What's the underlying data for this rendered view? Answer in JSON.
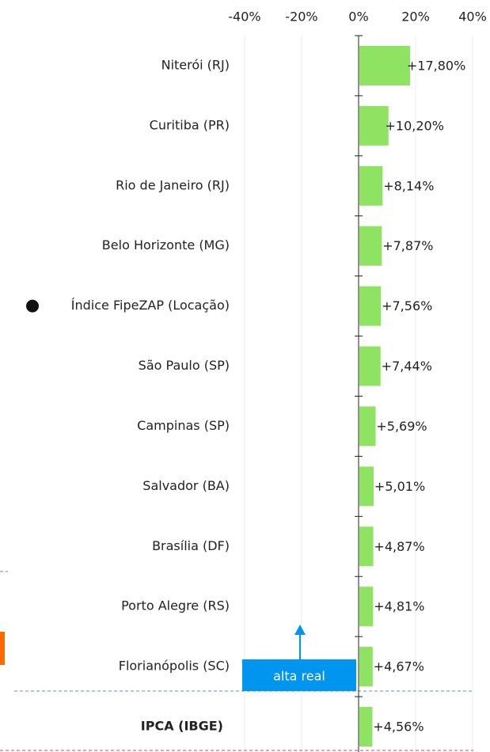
{
  "chart_data": {
    "type": "bar",
    "orientation": "horizontal",
    "categories": [
      "Niterói (RJ)",
      "Curitiba (PR)",
      "Rio de Janeiro (RJ)",
      "Belo Horizonte (MG)",
      "Índice FipeZAP (Locação)",
      "São Paulo (SP)",
      "Campinas (SP)",
      "Salvador (BA)",
      "Brasília (DF)",
      "Porto Alegre (RS)",
      "Florianópolis (SC)",
      "IPCA (IBGE)"
    ],
    "values": [
      17.8,
      10.2,
      8.14,
      7.87,
      7.56,
      7.44,
      5.69,
      5.01,
      4.87,
      4.81,
      4.67,
      4.56
    ],
    "value_labels": [
      "+17,80%",
      "+10,20%",
      "+8,14%",
      "+7,87%",
      "+7,56%",
      "+7,44%",
      "+5,69%",
      "+5,01%",
      "+4,87%",
      "+4,81%",
      "+4,67%",
      "+4,56%"
    ],
    "color": "#8ee462",
    "xlim": [
      -125.8,
      46.1
    ],
    "xticks": [
      {
        "value": -40,
        "label": "-40%"
      },
      {
        "value": -20,
        "label": "-20%"
      },
      {
        "value": 0,
        "label": "0%"
      },
      {
        "value": 20,
        "label": "20%"
      },
      {
        "value": 40,
        "label": "40%"
      }
    ],
    "grid": true,
    "annotation": "alta real"
  }
}
